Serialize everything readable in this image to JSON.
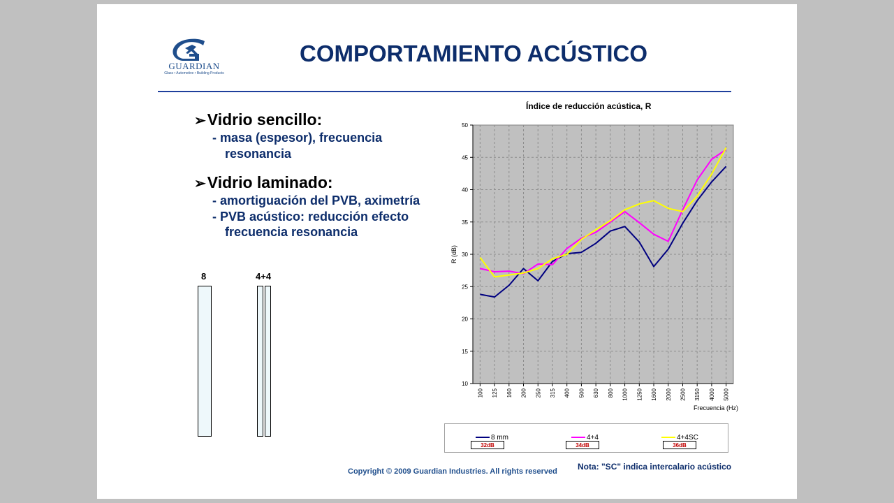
{
  "slide": {
    "title": "COMPORTAMIENTO ACÚSTICO",
    "logo": {
      "word": "GUARDIAN",
      "tagline": "Glass • Automotive • Building Products"
    },
    "bullets": [
      {
        "heading": "Vidrio sencillo:",
        "lines": [
          "- masa (espesor), frecuencia",
          "resonancia"
        ]
      },
      {
        "heading": "Vidrio laminado:",
        "lines": [
          "- amortiguación del PVB, aximetría",
          "- PVB acústico: reducción efecto",
          "frecuencia resonancia"
        ]
      }
    ],
    "glass_labels": [
      "8",
      "4+4"
    ],
    "copyright": "Copyright © 2009 Guardian Industries. All rights reserved",
    "nota": "Nota: \"SC\" indica intercalario acústico"
  },
  "chart_data": {
    "type": "line",
    "title": "Índice de reducción acústica, R",
    "xlabel": "Frecuencia (Hz)",
    "ylabel": "R (dB)",
    "categories": [
      "100",
      "125",
      "160",
      "200",
      "250",
      "315",
      "400",
      "500",
      "630",
      "800",
      "1000",
      "1250",
      "1600",
      "2000",
      "2500",
      "3150",
      "4000",
      "5000"
    ],
    "ylim": [
      10,
      50
    ],
    "yticks": [
      10,
      15,
      20,
      25,
      30,
      35,
      40,
      45,
      50
    ],
    "grid": true,
    "series": [
      {
        "name": "8 mm",
        "color": "#000080",
        "badge": "32dB",
        "values": [
          23.8,
          23.4,
          25.2,
          27.8,
          25.9,
          28.9,
          30.1,
          30.3,
          31.7,
          33.6,
          34.3,
          31.9,
          28.1,
          30.8,
          34.8,
          38.3,
          41.2,
          43.6
        ]
      },
      {
        "name": "4+4",
        "color": "#ff00ff",
        "badge": "34dB",
        "values": [
          27.8,
          27.3,
          27.4,
          27.0,
          28.5,
          28.4,
          30.9,
          32.5,
          33.4,
          35.0,
          36.6,
          34.9,
          33.1,
          32.0,
          36.9,
          41.5,
          44.7,
          46.2
        ]
      },
      {
        "name": "4+4SC",
        "color": "#ffff00",
        "badge": "36dB",
        "values": [
          29.5,
          26.5,
          26.8,
          27.1,
          27.8,
          29.3,
          30.0,
          32.3,
          33.8,
          35.2,
          36.9,
          37.8,
          38.3,
          37.1,
          36.6,
          39.0,
          42.4,
          46.5
        ]
      }
    ]
  }
}
